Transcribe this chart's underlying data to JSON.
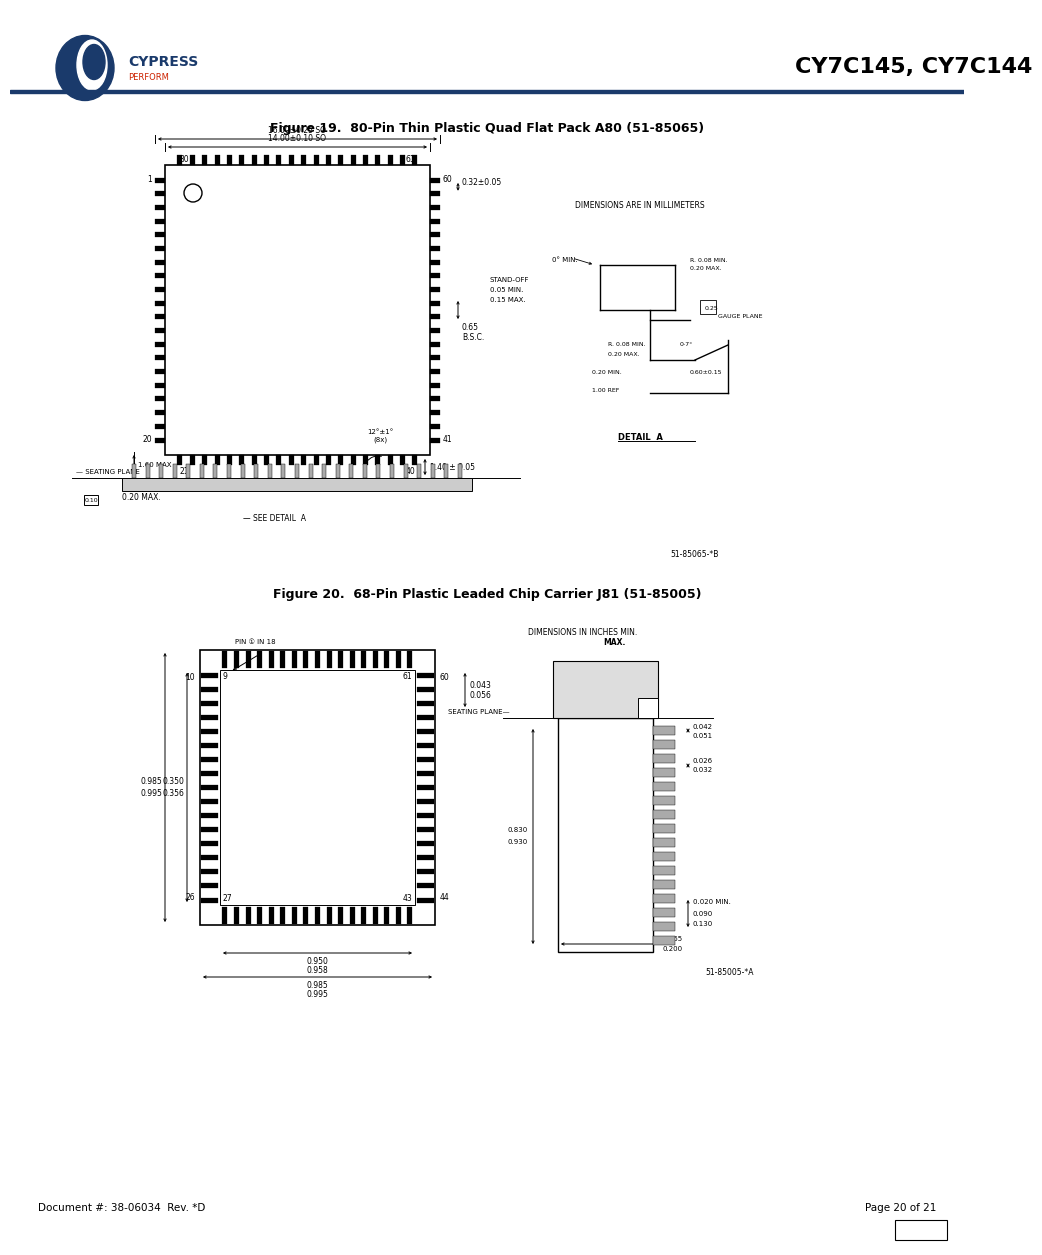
{
  "page_title": "CY7C145, CY7C144",
  "fig1_title": "Figure 19.  80-Pin Thin Plastic Quad Flat Pack A80 (51-85065)",
  "fig2_title": "Figure 20.  68-Pin Plastic Leaded Chip Carrier J81 (51-85005)",
  "footer_left": "Document #: 38-06034  Rev. *D",
  "footer_right": "Page 20 of 21",
  "header_rule_color": "#1a3a6b",
  "logo_color": "#1a3a6b",
  "logo_red": "#cc2200",
  "bg_color": "#ffffff",
  "fig1_millimeters": "DIMENSIONS ARE IN MILLIMETERS",
  "fig1_dim1": "16.00±0.25 SO",
  "fig1_dim2": "14.00±0.10 SO",
  "fig1_partno": "51-85065-*B",
  "fig2_partno": "51-85005-*A",
  "fig2_dimensions": "DIMENSIONS IN INCHES MIN.",
  "fig2_max": "MAX."
}
